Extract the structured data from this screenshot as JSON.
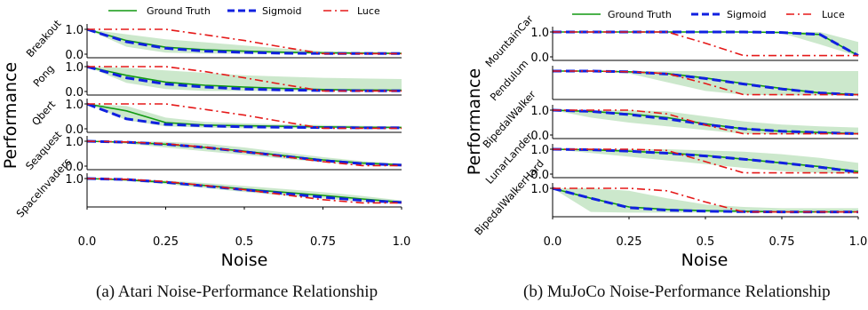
{
  "colors": {
    "ground_truth": "#119911",
    "sigmoid": "#1020e0",
    "luce": "#e51818",
    "band": "#c6e5c6",
    "axis": "#000000"
  },
  "legend": {
    "ground_truth": "Ground Truth",
    "sigmoid": "Sigmoid",
    "luce": "Luce"
  },
  "figures": [
    {
      "caption": "(a) Atari Noise-Performance Relationship",
      "ylabel": "Performance",
      "xlabel": "Noise",
      "x_ticks": [
        "0.0",
        "0.25",
        "0.5",
        "0.75",
        "1.0"
      ]
    },
    {
      "caption": "(b) MuJoCo Noise-Performance Relationship",
      "ylabel": "Performance",
      "xlabel": "Noise",
      "x_ticks": [
        "0.0",
        "0.25",
        "0.5",
        "0.75",
        "1.0"
      ]
    }
  ],
  "chart_data": [
    {
      "type": "line",
      "figure": "(a) Atari Noise-Performance Relationship",
      "xlabel": "Noise",
      "ylabel": "Performance",
      "xlim": [
        0,
        1
      ],
      "ylim": [
        0,
        1
      ],
      "x": [
        0,
        0.125,
        0.25,
        0.375,
        0.5,
        0.625,
        0.75,
        0.875,
        1.0
      ],
      "panels": [
        {
          "name": "Breakout",
          "y_ticks": [
            "1.0",
            "0.0"
          ],
          "series": [
            {
              "name": "Ground Truth",
              "values": [
                1.0,
                0.55,
                0.28,
                0.18,
                0.12,
                0.08,
                0.05,
                0.04,
                0.03
              ]
            },
            {
              "name": "Sigmoid",
              "values": [
                1.0,
                0.5,
                0.24,
                0.12,
                0.07,
                0.04,
                0.03,
                0.03,
                0.03
              ]
            },
            {
              "name": "Luce",
              "values": [
                1.0,
                1.0,
                1.0,
                0.78,
                0.55,
                0.28,
                0.02,
                0.02,
                0.02
              ]
            }
          ],
          "band": {
            "upper": [
              1.0,
              0.8,
              0.6,
              0.48,
              0.35,
              0.22,
              0.12,
              0.1,
              0.08
            ],
            "lower": [
              1.0,
              0.3,
              0.06,
              0.02,
              0.02,
              0.02,
              0.02,
              0.02,
              0.02
            ]
          }
        },
        {
          "name": "Pong",
          "y_ticks": [
            "1.0",
            "0.0"
          ],
          "series": [
            {
              "name": "Ground Truth",
              "values": [
                1.0,
                0.65,
                0.38,
                0.25,
                0.18,
                0.12,
                0.08,
                0.06,
                0.05
              ]
            },
            {
              "name": "Sigmoid",
              "values": [
                1.0,
                0.55,
                0.3,
                0.18,
                0.1,
                0.06,
                0.04,
                0.03,
                0.03
              ]
            },
            {
              "name": "Luce",
              "values": [
                1.0,
                1.0,
                1.0,
                0.8,
                0.55,
                0.28,
                0.02,
                0.02,
                0.02
              ]
            }
          ],
          "band": {
            "upper": [
              1.0,
              0.95,
              0.85,
              0.75,
              0.65,
              0.6,
              0.55,
              0.52,
              0.5
            ],
            "lower": [
              1.0,
              0.35,
              0.1,
              0.02,
              0.02,
              0.02,
              0.02,
              0.02,
              0.02
            ]
          }
        },
        {
          "name": "Qbert",
          "y_ticks": [
            "1.0",
            "0.0"
          ],
          "series": [
            {
              "name": "Ground Truth",
              "values": [
                1.0,
                0.72,
                0.25,
                0.15,
                0.12,
                0.1,
                0.08,
                0.06,
                0.05
              ]
            },
            {
              "name": "Sigmoid",
              "values": [
                1.0,
                0.4,
                0.18,
                0.12,
                0.08,
                0.06,
                0.05,
                0.04,
                0.04
              ]
            },
            {
              "name": "Luce",
              "values": [
                1.0,
                1.0,
                1.0,
                0.78,
                0.55,
                0.28,
                0.02,
                0.02,
                0.02
              ]
            }
          ],
          "band": {
            "upper": [
              1.0,
              0.92,
              0.45,
              0.28,
              0.22,
              0.18,
              0.15,
              0.12,
              0.1
            ],
            "lower": [
              1.0,
              0.35,
              0.1,
              0.05,
              0.02,
              0.02,
              0.02,
              0.02,
              0.02
            ]
          }
        },
        {
          "name": "Seaquest",
          "y_ticks": [
            "1.0",
            "0.0"
          ],
          "series": [
            {
              "name": "Ground Truth",
              "values": [
                1.0,
                0.96,
                0.88,
                0.75,
                0.6,
                0.42,
                0.25,
                0.12,
                0.05
              ]
            },
            {
              "name": "Sigmoid",
              "values": [
                1.0,
                0.96,
                0.88,
                0.75,
                0.58,
                0.4,
                0.22,
                0.1,
                0.04
              ]
            },
            {
              "name": "Luce",
              "values": [
                1.0,
                0.97,
                0.9,
                0.76,
                0.58,
                0.38,
                0.18,
                0.02,
                0.02
              ]
            }
          ],
          "band": {
            "upper": [
              1.0,
              1.0,
              0.98,
              0.9,
              0.75,
              0.55,
              0.36,
              0.2,
              0.1
            ],
            "lower": [
              1.0,
              0.9,
              0.75,
              0.6,
              0.45,
              0.3,
              0.15,
              0.05,
              0.02
            ]
          }
        },
        {
          "name": "SpaceInvaders",
          "y_ticks": [
            "1.0"
          ],
          "series": [
            {
              "name": "Ground Truth",
              "values": [
                1.0,
                0.95,
                0.85,
                0.72,
                0.58,
                0.45,
                0.32,
                0.18,
                0.05
              ]
            },
            {
              "name": "Sigmoid",
              "values": [
                1.0,
                0.96,
                0.85,
                0.7,
                0.55,
                0.4,
                0.25,
                0.12,
                0.04
              ]
            },
            {
              "name": "Luce",
              "values": [
                1.0,
                0.97,
                0.88,
                0.72,
                0.55,
                0.35,
                0.15,
                0.02,
                0.02
              ]
            }
          ],
          "band": {
            "upper": [
              1.0,
              0.99,
              0.92,
              0.82,
              0.7,
              0.58,
              0.45,
              0.3,
              0.12
            ],
            "lower": [
              1.0,
              0.9,
              0.78,
              0.62,
              0.46,
              0.32,
              0.2,
              0.08,
              0.02
            ]
          }
        }
      ]
    },
    {
      "type": "line",
      "figure": "(b) MuJoCo Noise-Performance Relationship",
      "xlabel": "Noise",
      "ylabel": "Performance",
      "xlim": [
        0,
        1
      ],
      "ylim": [
        0,
        1
      ],
      "x": [
        0,
        0.125,
        0.25,
        0.375,
        0.5,
        0.625,
        0.75,
        0.875,
        1.0
      ],
      "panels": [
        {
          "name": "MountainCar",
          "y_ticks": [
            "1.0",
            "0.0"
          ],
          "series": [
            {
              "name": "Ground Truth",
              "values": [
                1.0,
                1.0,
                1.0,
                1.0,
                1.0,
                1.0,
                0.98,
                0.9,
                0.05
              ]
            },
            {
              "name": "Sigmoid",
              "values": [
                1.0,
                1.0,
                1.0,
                1.0,
                1.0,
                1.0,
                0.98,
                0.9,
                0.05
              ]
            },
            {
              "name": "Luce",
              "values": [
                1.0,
                1.0,
                1.0,
                1.0,
                0.55,
                0.05,
                0.05,
                0.05,
                0.05
              ]
            }
          ],
          "band": {
            "upper": [
              1.0,
              1.0,
              1.0,
              1.0,
              1.0,
              1.0,
              1.0,
              1.0,
              0.6
            ],
            "lower": [
              1.0,
              1.0,
              1.0,
              1.0,
              1.0,
              1.0,
              0.95,
              0.5,
              0.02
            ]
          }
        },
        {
          "name": "Pendulum",
          "y_ticks": [],
          "series": [
            {
              "name": "Ground Truth",
              "values": [
                1.0,
                1.0,
                0.97,
                0.9,
                0.72,
                0.5,
                0.3,
                0.12,
                0.05
              ]
            },
            {
              "name": "Sigmoid",
              "values": [
                1.0,
                1.0,
                0.97,
                0.88,
                0.7,
                0.48,
                0.28,
                0.12,
                0.04
              ]
            },
            {
              "name": "Luce",
              "values": [
                1.0,
                1.0,
                0.97,
                0.9,
                0.5,
                0.05,
                0.05,
                0.05,
                0.05
              ]
            }
          ],
          "band": {
            "upper": [
              1.0,
              1.0,
              1.0,
              1.0,
              1.0,
              1.0,
              1.0,
              1.0,
              1.0
            ],
            "lower": [
              1.0,
              1.0,
              0.9,
              0.55,
              0.2,
              0.05,
              0.02,
              0.02,
              0.02
            ]
          }
        },
        {
          "name": "BipedalWalker",
          "y_ticks": [
            "1.0",
            "0.0"
          ],
          "series": [
            {
              "name": "Ground Truth",
              "values": [
                1.0,
                0.95,
                0.85,
                0.7,
                0.45,
                0.25,
                0.15,
                0.1,
                0.05
              ]
            },
            {
              "name": "Sigmoid",
              "values": [
                1.0,
                0.95,
                0.82,
                0.65,
                0.42,
                0.25,
                0.15,
                0.1,
                0.05
              ]
            },
            {
              "name": "Luce",
              "values": [
                1.0,
                1.0,
                1.0,
                0.85,
                0.4,
                0.05,
                0.05,
                0.05,
                0.05
              ]
            }
          ],
          "band": {
            "upper": [
              1.0,
              1.0,
              1.0,
              0.95,
              0.75,
              0.55,
              0.42,
              0.35,
              0.3
            ],
            "lower": [
              1.0,
              0.7,
              0.5,
              0.35,
              0.2,
              0.05,
              0.02,
              0.02,
              0.02
            ]
          }
        },
        {
          "name": "LunarLander",
          "y_ticks": [
            "1.0",
            "0.0"
          ],
          "series": [
            {
              "name": "Ground Truth",
              "values": [
                1.0,
                0.98,
                0.92,
                0.85,
                0.75,
                0.6,
                0.45,
                0.3,
                0.1
              ]
            },
            {
              "name": "Sigmoid",
              "values": [
                1.0,
                0.98,
                0.92,
                0.84,
                0.73,
                0.6,
                0.45,
                0.28,
                0.08
              ]
            },
            {
              "name": "Luce",
              "values": [
                1.0,
                1.0,
                1.0,
                0.95,
                0.5,
                0.05,
                0.05,
                0.05,
                0.05
              ]
            }
          ],
          "band": {
            "upper": [
              1.0,
              1.0,
              1.0,
              1.0,
              0.95,
              0.9,
              0.8,
              0.65,
              0.45
            ],
            "lower": [
              1.0,
              0.85,
              0.7,
              0.55,
              0.4,
              0.25,
              0.12,
              0.05,
              0.02
            ]
          }
        },
        {
          "name": "BipedalWalkerHard",
          "y_ticks": [
            "1.0"
          ],
          "series": [
            {
              "name": "Ground Truth",
              "values": [
                1.0,
                0.6,
                0.25,
                0.15,
                0.1,
                0.08,
                0.05,
                0.05,
                0.05
              ]
            },
            {
              "name": "Sigmoid",
              "values": [
                1.0,
                0.6,
                0.22,
                0.12,
                0.08,
                0.06,
                0.05,
                0.05,
                0.05
              ]
            },
            {
              "name": "Luce",
              "values": [
                1.0,
                1.0,
                1.0,
                0.9,
                0.45,
                0.05,
                0.05,
                0.05,
                0.05
              ]
            }
          ],
          "band": {
            "upper": [
              1.0,
              1.0,
              0.9,
              0.6,
              0.35,
              0.25,
              0.2,
              0.2,
              0.2
            ],
            "lower": [
              1.0,
              0.05,
              0.02,
              0.02,
              0.02,
              0.02,
              0.02,
              0.02,
              0.02
            ]
          }
        }
      ]
    }
  ]
}
